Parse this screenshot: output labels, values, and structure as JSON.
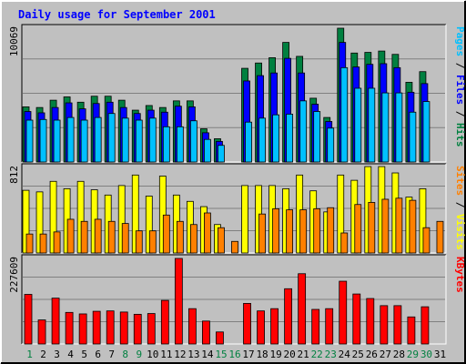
{
  "chart_data": {
    "title": "Daily usage for September 2001",
    "type": "bar",
    "days": [
      "1",
      "2",
      "3",
      "4",
      "5",
      "6",
      "7",
      "8",
      "9",
      "10",
      "11",
      "12",
      "13",
      "14",
      "15",
      "16",
      "17",
      "18",
      "19",
      "20",
      "21",
      "22",
      "23",
      "24",
      "25",
      "26",
      "27",
      "28",
      "29",
      "30",
      "31"
    ],
    "weekend_days": [
      1,
      8,
      9,
      15,
      16,
      22,
      23,
      29,
      30
    ],
    "colors": {
      "hits": "#008040",
      "files": "#0000ff",
      "pages": "#00c0ff",
      "visits": "#ffff00",
      "sites": "#ff8000",
      "kbytes": "#ff0000",
      "title": "#0000ff",
      "weekday_label": "#000000",
      "weekend_label": "#008040",
      "background": "#c0c0c0",
      "panel_background": "#c0c0c0",
      "gridline": "#808080"
    },
    "panels": [
      {
        "id": "hits-files-pages",
        "max_label": "10069",
        "ymax": 10069,
        "right_label": [
          {
            "text": "Pages",
            "color": "#00c0ff"
          },
          {
            "text": " / ",
            "color": "#000000"
          },
          {
            "text": "Files",
            "color": "#0000ff"
          },
          {
            "text": " / ",
            "color": "#000000"
          },
          {
            "text": "Hits",
            "color": "#008040"
          }
        ],
        "series": [
          {
            "name": "Hits",
            "values": [
              4150,
              4100,
              4650,
              4900,
              4500,
              4950,
              4950,
              4650,
              3900,
              4250,
              4100,
              4600,
              4600,
              2500,
              1750,
              0,
              7050,
              7450,
              7850,
              9000,
              7950,
              4800,
              3350,
              10069,
              8200,
              8250,
              8350,
              8100,
              6000,
              6800,
              0
            ]
          },
          {
            "name": "Files",
            "values": [
              3800,
              3700,
              4100,
              4450,
              4000,
              4400,
              4500,
              4100,
              3650,
              3900,
              3750,
              4200,
              4150,
              2200,
              1550,
              0,
              6100,
              6500,
              6700,
              7800,
              6700,
              4350,
              3050,
              9000,
              7150,
              7350,
              7400,
              7100,
              5250,
              5900,
              0
            ]
          },
          {
            "name": "Pages",
            "values": [
              3150,
              3200,
              3150,
              3350,
              3150,
              3350,
              3650,
              3300,
              3150,
              3300,
              2650,
              2650,
              3100,
              1700,
              1250,
              0,
              3000,
              3300,
              3550,
              3600,
              4600,
              3800,
              2550,
              7100,
              5550,
              5550,
              5200,
              5200,
              3750,
              4550,
              0
            ]
          }
        ]
      },
      {
        "id": "visits-sites",
        "max_label": "812",
        "ymax": 812,
        "right_label": [
          {
            "text": "Sites",
            "color": "#ff8000"
          },
          {
            "text": " / ",
            "color": "#000000"
          },
          {
            "text": "Visits",
            "color": "#ffff00"
          }
        ],
        "series": [
          {
            "name": "Visits",
            "values": [
              595,
              580,
              680,
              610,
              680,
              600,
              550,
              640,
              740,
              540,
              730,
              550,
              490,
              440,
              270,
              0,
              640,
              640,
              640,
              610,
              740,
              590,
              390,
              740,
              690,
              820,
              820,
              760,
              530,
              610,
              0
            ]
          },
          {
            "name": "Sites",
            "values": [
              180,
              180,
              200,
              320,
              300,
              320,
              300,
              280,
              210,
              210,
              360,
              300,
              270,
              380,
              240,
              110,
              0,
              370,
              420,
              410,
              410,
              420,
              430,
              190,
              460,
              480,
              510,
              520,
              500,
              240,
              300
            ]
          }
        ]
      },
      {
        "id": "kbytes",
        "max_label": "227609",
        "ymax": 227609,
        "right_label": [
          {
            "text": "KBytes",
            "color": "#ff0000"
          }
        ],
        "series": [
          {
            "name": "KBytes",
            "values": [
              132000,
              64000,
              122000,
              84000,
              80000,
              87000,
              88000,
              85000,
              79000,
              81000,
              116000,
              227609,
              94000,
              61000,
              32000,
              0,
              108000,
              88000,
              94000,
              147000,
              187000,
              92000,
              94000,
              167000,
              133000,
              121000,
              102000,
              102000,
              72000,
              99000,
              0
            ]
          }
        ]
      }
    ]
  }
}
